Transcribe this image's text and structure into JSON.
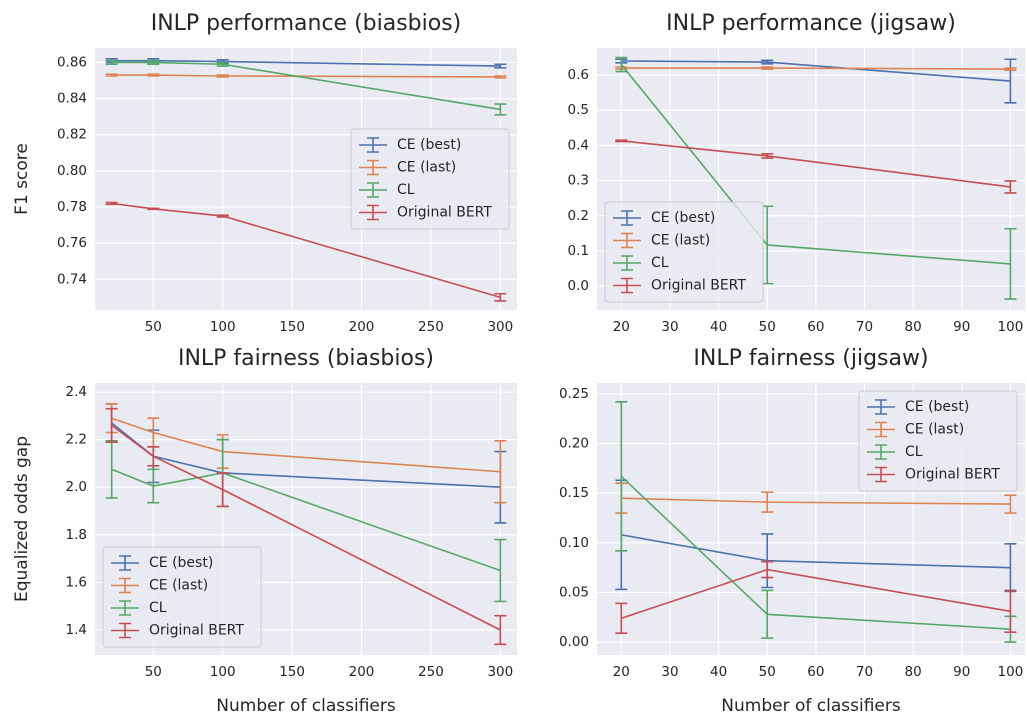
{
  "chart_data": [
    {
      "type": "line",
      "title": "INLP performance (biasbios)",
      "ylabel": "F1 score",
      "x": [
        20,
        50,
        100,
        300
      ],
      "xlim": [
        8,
        312
      ],
      "xticks": [
        50,
        100,
        150,
        200,
        250,
        300
      ],
      "ylim": [
        0.723,
        0.868
      ],
      "yticks": [
        0.74,
        0.76,
        0.78,
        {
          "value": 0.8,
          "label": "0.80"
        },
        0.82,
        0.84,
        0.86
      ],
      "grid": true,
      "legend": "center right",
      "series": [
        {
          "name": "CE (best)",
          "color": "#4c72b0",
          "values": [
            0.861,
            0.861,
            0.8605,
            0.858
          ],
          "errors": [
            0.001,
            0.001,
            0.001,
            0.001
          ]
        },
        {
          "name": "CE (last)",
          "color": "#dd8452",
          "values": [
            0.853,
            0.853,
            0.8525,
            0.852
          ],
          "errors": [
            0.0005,
            0.0005,
            0.0005,
            0.0005
          ]
        },
        {
          "name": "CL",
          "color": "#55a868",
          "values": [
            0.86,
            0.86,
            0.859,
            0.834
          ],
          "errors": [
            0.001,
            0.001,
            0.001,
            0.003
          ]
        },
        {
          "name": "Original BERT",
          "color": "#c44e52",
          "values": [
            0.782,
            0.779,
            0.775,
            0.73
          ],
          "errors": [
            0.0005,
            0.0003,
            0.0005,
            0.002
          ]
        }
      ]
    },
    {
      "type": "line",
      "title": "INLP performance (jigsaw)",
      "x": [
        20,
        50,
        100
      ],
      "xlim": [
        15,
        103
      ],
      "xticks": [
        20,
        30,
        40,
        50,
        60,
        70,
        80,
        90,
        100
      ],
      "ylim": [
        -0.068,
        0.677
      ],
      "yticks": [
        {
          "value": 0,
          "label": "0.0"
        },
        0.1,
        0.2,
        0.3,
        0.4,
        0.5,
        0.6
      ],
      "grid": true,
      "legend": "lower left",
      "series": [
        {
          "name": "CE (best)",
          "color": "#4c72b0",
          "values": [
            0.64,
            0.637,
            0.583
          ],
          "errors": [
            0.005,
            0.005,
            0.062
          ]
        },
        {
          "name": "CE (last)",
          "color": "#dd8452",
          "values": [
            0.62,
            0.62,
            0.617
          ],
          "errors": [
            0.003,
            0.003,
            0.003
          ]
        },
        {
          "name": "CL",
          "color": "#55a868",
          "values": [
            0.63,
            0.117,
            0.063
          ],
          "errors": [
            0.02,
            0.11,
            0.1
          ]
        },
        {
          "name": "Original BERT",
          "color": "#c44e52",
          "values": [
            0.413,
            0.37,
            0.282
          ],
          "errors": [
            0.002,
            0.006,
            0.017
          ]
        }
      ]
    },
    {
      "type": "line",
      "title": "INLP fairness (biasbios)",
      "ylabel": "Equalized odds gap",
      "xlabel": "Number of classifiers",
      "x": [
        20,
        50,
        100,
        300
      ],
      "xlim": [
        8,
        312
      ],
      "xticks": [
        50,
        100,
        150,
        200,
        250,
        300
      ],
      "ylim": [
        1.295,
        2.438
      ],
      "yticks": [
        1.4,
        1.6,
        1.8,
        {
          "value": 2,
          "label": "2.0"
        },
        2.2,
        2.4
      ],
      "grid": true,
      "legend": "lower left",
      "series": [
        {
          "name": "CE (best)",
          "color": "#4c72b0",
          "values": [
            2.27,
            2.13,
            2.06,
            2.0
          ],
          "errors": [
            0.08,
            0.11,
            0.14,
            0.15
          ]
        },
        {
          "name": "CE (last)",
          "color": "#dd8452",
          "values": [
            2.29,
            2.23,
            2.15,
            2.065
          ],
          "errors": [
            0.06,
            0.06,
            0.07,
            0.13
          ]
        },
        {
          "name": "CL",
          "color": "#55a868",
          "values": [
            2.075,
            2.005,
            2.06,
            1.65
          ],
          "errors": [
            0.12,
            0.07,
            0.14,
            0.13
          ]
        },
        {
          "name": "Original BERT",
          "color": "#c44e52",
          "values": [
            2.26,
            2.13,
            1.99,
            1.4
          ],
          "errors": [
            0.07,
            0.04,
            0.07,
            0.06
          ]
        }
      ]
    },
    {
      "type": "line",
      "title": "INLP fairness (jigsaw)",
      "xlabel": "Number of classifiers",
      "x": [
        20,
        50,
        100
      ],
      "xlim": [
        15,
        103
      ],
      "xticks": [
        20,
        30,
        40,
        50,
        60,
        70,
        80,
        90,
        100
      ],
      "ylim": [
        -0.013,
        0.261
      ],
      "yticks": [
        {
          "value": 0,
          "label": "0.00"
        },
        0.05,
        {
          "value": 0.1,
          "label": "0.10"
        },
        0.15,
        {
          "value": 0.2,
          "label": "0.20"
        },
        0.25
      ],
      "grid": true,
      "legend": "upper right",
      "series": [
        {
          "name": "CE (best)",
          "color": "#4c72b0",
          "values": [
            0.108,
            0.082,
            0.075
          ],
          "errors": [
            0.055,
            0.027,
            0.024
          ]
        },
        {
          "name": "CE (last)",
          "color": "#dd8452",
          "values": [
            0.145,
            0.141,
            0.139
          ],
          "errors": [
            0.015,
            0.01,
            0.009
          ]
        },
        {
          "name": "CL",
          "color": "#55a868",
          "values": [
            0.167,
            0.028,
            0.013
          ],
          "errors": [
            0.075,
            0.024,
            0.013
          ]
        },
        {
          "name": "Original BERT",
          "color": "#c44e52",
          "values": [
            0.024,
            0.073,
            0.031
          ],
          "errors": [
            0.015,
            0.008,
            0.021
          ]
        }
      ]
    }
  ]
}
